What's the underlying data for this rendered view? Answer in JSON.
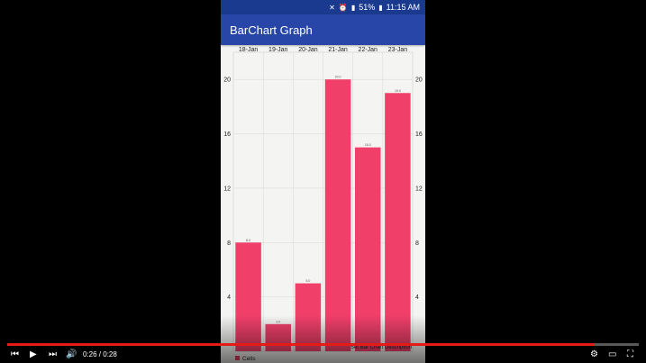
{
  "status_bar": {
    "battery": "51%",
    "time": "11:15 AM"
  },
  "app_bar": {
    "title": "BarChart Graph"
  },
  "chart_data": {
    "type": "bar",
    "categories": [
      "18-Jan",
      "19-Jan",
      "20-Jan",
      "21-Jan",
      "22-Jan",
      "23-Jan"
    ],
    "series": [
      {
        "name": "Cells",
        "values": [
          8,
          2,
          5,
          20,
          15,
          19
        ],
        "color": "#f0406a"
      }
    ],
    "value_labels": [
      "8.0",
      "2.0",
      "5.0",
      "20.0",
      "15.0",
      "19.0"
    ],
    "y_ticks": [
      "4",
      "8",
      "12",
      "16",
      "20"
    ],
    "ylim": [
      0,
      22
    ],
    "grid": true,
    "legend_position": "bottom-left",
    "description": "Set Bar Chart Description"
  },
  "player": {
    "time_current": "0:26",
    "time_total": "0:28",
    "progress": 0.93,
    "icons": [
      "skip-previous-icon",
      "play-icon",
      "skip-next-icon",
      "volume-icon",
      "settings-icon",
      "theater-mode-icon",
      "fullscreen-icon"
    ]
  }
}
